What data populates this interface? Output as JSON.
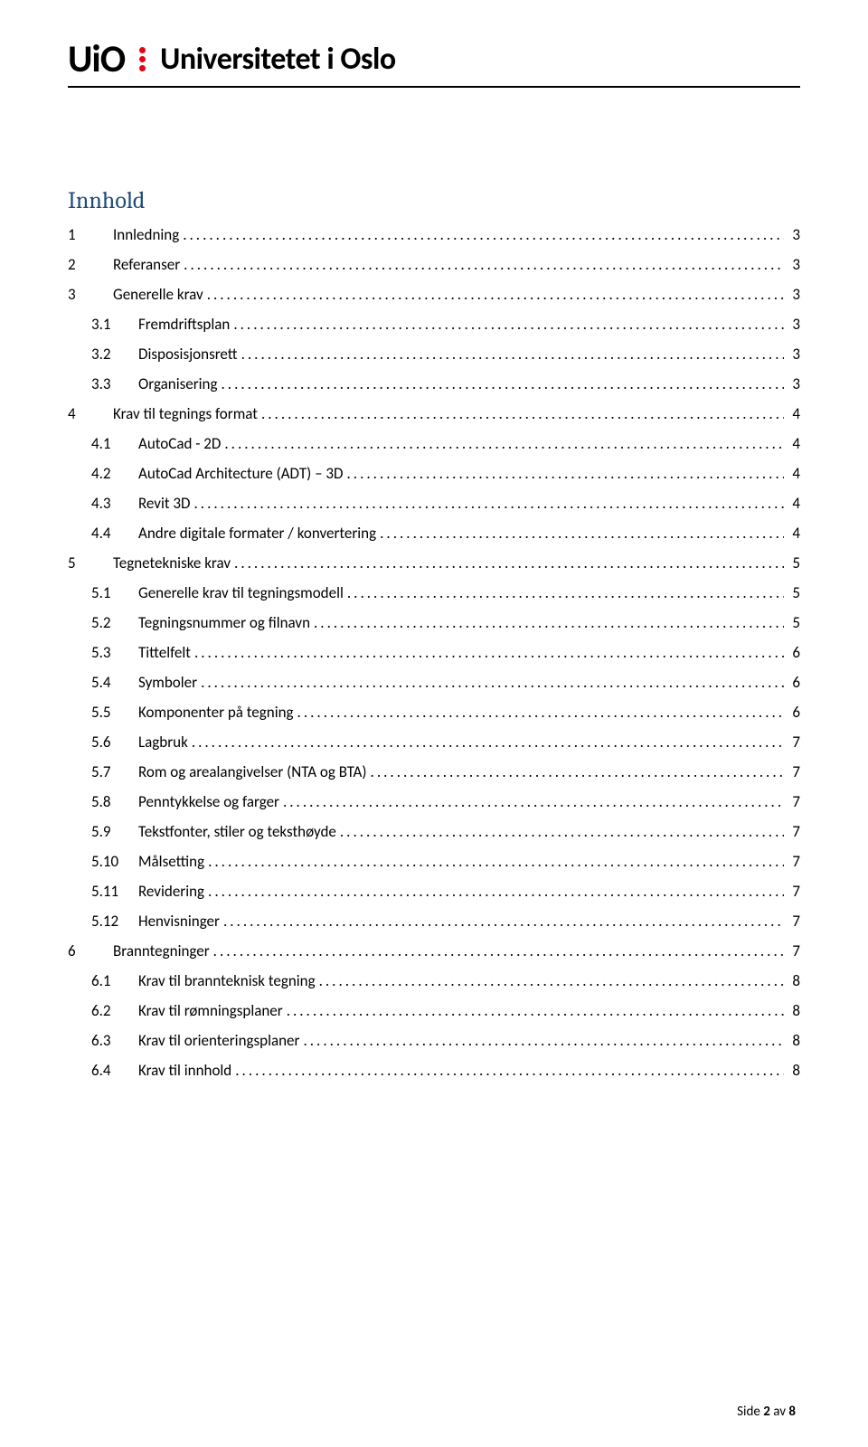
{
  "header": {
    "logo_text": "UiO",
    "institution": "Universitetet i Oslo",
    "logo_accent_color": "#e30613"
  },
  "toc": {
    "title": "Innhold",
    "title_color": "#1f497d",
    "title_fontsize": 26,
    "entry_fontsize": 17,
    "entries": [
      {
        "num": "1",
        "text": "Innledning",
        "page": "3",
        "level": 1
      },
      {
        "num": "2",
        "text": "Referanser",
        "page": "3",
        "level": 1
      },
      {
        "num": "3",
        "text": "Generelle krav",
        "page": "3",
        "level": 1
      },
      {
        "num": "3.1",
        "text": "Fremdriftsplan",
        "page": "3",
        "level": 2
      },
      {
        "num": "3.2",
        "text": "Disposisjonsrett",
        "page": "3",
        "level": 2
      },
      {
        "num": "3.3",
        "text": "Organisering",
        "page": "3",
        "level": 2
      },
      {
        "num": "4",
        "text": "Krav til tegnings format",
        "page": "4",
        "level": 1
      },
      {
        "num": "4.1",
        "text": "AutoCad - 2D",
        "page": "4",
        "level": 2
      },
      {
        "num": "4.2",
        "text": "AutoCad Architecture (ADT) – 3D",
        "page": "4",
        "level": 2
      },
      {
        "num": "4.3",
        "text": "Revit 3D",
        "page": "4",
        "level": 2
      },
      {
        "num": "4.4",
        "text": "Andre digitale formater  / konvertering",
        "page": "4",
        "level": 2
      },
      {
        "num": "5",
        "text": "Tegnetekniske krav",
        "page": "5",
        "level": 1
      },
      {
        "num": "5.1",
        "text": "Generelle krav til tegningsmodell",
        "page": "5",
        "level": 2
      },
      {
        "num": "5.2",
        "text": "Tegningsnummer og filnavn",
        "page": "5",
        "level": 2
      },
      {
        "num": "5.3",
        "text": "Tittelfelt",
        "page": "6",
        "level": 2
      },
      {
        "num": "5.4",
        "text": "Symboler",
        "page": "6",
        "level": 2
      },
      {
        "num": "5.5",
        "text": "Komponenter på tegning",
        "page": "6",
        "level": 2
      },
      {
        "num": "5.6",
        "text": "Lagbruk",
        "page": "7",
        "level": 2
      },
      {
        "num": "5.7",
        "text": "Rom og arealangivelser (NTA og BTA)",
        "page": "7",
        "level": 2
      },
      {
        "num": "5.8",
        "text": "Penntykkelse og farger",
        "page": "7",
        "level": 2
      },
      {
        "num": "5.9",
        "text": "Tekstfonter, stiler og teksthøyde",
        "page": "7",
        "level": 2
      },
      {
        "num": "5.10",
        "text": "Målsetting",
        "page": "7",
        "level": 2
      },
      {
        "num": "5.11",
        "text": "Revidering",
        "page": "7",
        "level": 2
      },
      {
        "num": "5.12",
        "text": "Henvisninger",
        "page": "7",
        "level": 2
      },
      {
        "num": "6",
        "text": "Branntegninger",
        "page": "7",
        "level": 1
      },
      {
        "num": "6.1",
        "text": "Krav til brannteknisk tegning",
        "page": "8",
        "level": 2
      },
      {
        "num": "6.2",
        "text": "Krav til rømningsplaner",
        "page": "8",
        "level": 2
      },
      {
        "num": "6.3",
        "text": "Krav til orienteringsplaner",
        "page": "8",
        "level": 2
      },
      {
        "num": "6.4",
        "text": "Krav til innhold",
        "page": "8",
        "level": 2
      }
    ]
  },
  "footer": {
    "label": "Side",
    "current": "2",
    "sep": "av",
    "total": "8"
  },
  "colors": {
    "text": "#000000",
    "background": "#ffffff",
    "accent_heading": "#1f497d",
    "logo_red": "#e30613"
  }
}
